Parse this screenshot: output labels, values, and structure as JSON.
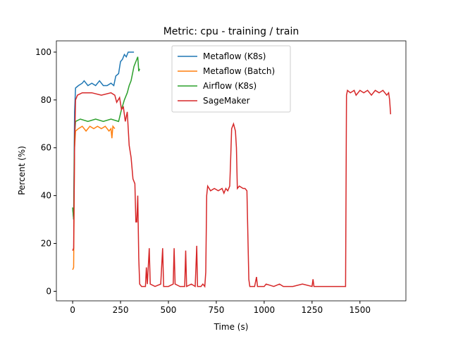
{
  "chart_data": {
    "type": "line",
    "title": "Metric: cpu - training / train",
    "x_label": "Time (s)",
    "y_label": "Percent (%)",
    "xlim": [
      -85,
      1740
    ],
    "ylim": [
      -4,
      104.7
    ],
    "xticks": [
      0,
      250,
      500,
      750,
      1000,
      1250,
      1500
    ],
    "yticks": [
      0,
      20,
      40,
      60,
      80,
      100
    ],
    "legend": "upper center",
    "series": [
      {
        "name": "Metaflow (K8s)",
        "color": "#1f77b4",
        "x": [
          0,
          5,
          10,
          15,
          30,
          50,
          60,
          80,
          100,
          120,
          140,
          160,
          180,
          200,
          215,
          225,
          240,
          250,
          260,
          270,
          280,
          290,
          310,
          320
        ],
        "values": [
          35,
          30,
          75,
          85,
          86,
          87,
          88,
          86,
          87,
          86,
          88,
          86,
          86,
          87,
          86,
          90,
          91,
          96,
          97,
          99,
          98,
          100,
          100,
          100
        ]
      },
      {
        "name": "Metaflow (Batch)",
        "color": "#ff7f0e",
        "x": [
          0,
          5,
          10,
          15,
          30,
          50,
          70,
          90,
          110,
          130,
          150,
          170,
          190,
          200,
          205,
          210,
          220
        ],
        "values": [
          9,
          10,
          60,
          67,
          68,
          69,
          67,
          69,
          68,
          69,
          68,
          69,
          67,
          68,
          64,
          69,
          68
        ]
      },
      {
        "name": "Airflow (K8s)",
        "color": "#2ca02c",
        "x": [
          0,
          5,
          10,
          15,
          40,
          80,
          120,
          160,
          200,
          240,
          255,
          270,
          285,
          295,
          305,
          320,
          330,
          340,
          345,
          350
        ],
        "values": [
          35,
          30,
          65,
          71,
          72,
          71,
          72,
          71,
          72,
          71,
          76,
          80,
          83,
          86,
          88,
          94,
          96,
          98,
          92,
          93
        ]
      },
      {
        "name": "SageMaker",
        "color": "#d62728",
        "x": [
          0,
          5,
          10,
          15,
          25,
          50,
          100,
          150,
          200,
          220,
          230,
          245,
          255,
          265,
          275,
          285,
          295,
          305,
          315,
          325,
          330,
          335,
          340,
          345,
          350,
          360,
          380,
          385,
          390,
          400,
          405,
          430,
          460,
          470,
          475,
          500,
          525,
          530,
          535,
          560,
          585,
          590,
          595,
          620,
          640,
          648,
          652,
          670,
          680,
          690,
          695,
          700,
          705,
          720,
          740,
          760,
          780,
          790,
          800,
          810,
          820,
          825,
          830,
          840,
          850,
          855,
          860,
          870,
          890,
          900,
          910,
          920,
          925,
          950,
          960,
          965,
          1000,
          1010,
          1050,
          1080,
          1100,
          1150,
          1200,
          1250,
          1255,
          1260,
          1300,
          1350,
          1400,
          1420,
          1425,
          1430,
          1435,
          1450,
          1470,
          1480,
          1500,
          1520,
          1540,
          1560,
          1580,
          1600,
          1620,
          1640,
          1650,
          1655,
          1660
        ],
        "values": [
          17,
          18,
          60,
          80,
          82,
          83,
          83,
          82,
          83,
          82,
          79,
          81,
          76,
          77,
          71,
          75,
          61,
          56,
          47,
          45,
          29,
          29,
          40,
          14,
          3,
          2,
          2,
          10,
          3,
          18,
          3,
          2,
          3,
          18,
          2,
          2,
          3,
          18,
          3,
          2,
          2,
          17,
          2,
          3,
          2,
          19,
          2,
          2,
          3,
          2,
          8,
          40,
          44,
          42,
          43,
          42,
          43,
          41,
          43,
          42,
          44,
          55,
          68,
          70,
          67,
          60,
          43,
          44,
          43,
          43,
          42,
          5,
          2,
          2,
          6,
          2,
          2,
          3,
          2,
          3,
          2,
          2,
          3,
          2,
          5,
          2,
          2,
          2,
          2,
          2,
          2,
          82,
          84,
          83,
          84,
          82,
          84,
          83,
          84,
          82,
          84,
          83,
          84,
          82,
          83,
          80,
          74
        ]
      }
    ]
  }
}
